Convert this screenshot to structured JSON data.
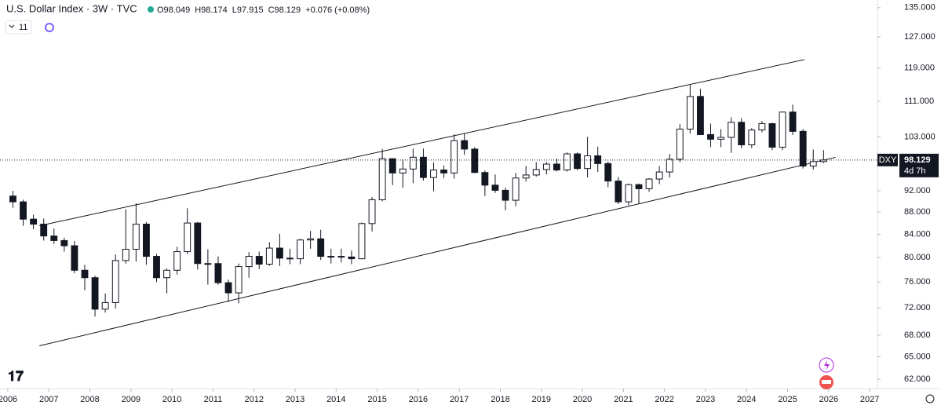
{
  "chart_data": {
    "type": "candlestick",
    "title": "U.S. Dollar Index · 3W · TVC",
    "ohlc_legend": [
      "O98.049",
      "H98.174",
      "L97.915",
      "C98.129",
      "+0.076 (+0.08%)"
    ],
    "indicator_count": 11,
    "symbol": "DXY",
    "last_price": 98.129,
    "countdown": "4d 7h",
    "log_scale": true,
    "up_color": "#ffffff",
    "down_color": "#131722",
    "outline_color": "#131722",
    "line_color": "#131722",
    "xlim": [
      2005.81,
      2027.15
    ],
    "xticks": [
      2006,
      2007,
      2008,
      2009,
      2010,
      2011,
      2012,
      2013,
      2014,
      2015,
      2016,
      2017,
      2018,
      2019,
      2020,
      2021,
      2022,
      2023,
      2024,
      2025,
      2026,
      2027
    ],
    "ylim": [
      60.8,
      137.2
    ],
    "yticks": [
      {
        "value": 62,
        "label": "62.000"
      },
      {
        "value": 65,
        "label": "65.000"
      },
      {
        "value": 68,
        "label": "68.000"
      },
      {
        "value": 72,
        "label": "72.000"
      },
      {
        "value": 76,
        "label": "76.000"
      },
      {
        "value": 80,
        "label": "80.000"
      },
      {
        "value": 84,
        "label": "84.000"
      },
      {
        "value": 88,
        "label": "88.000"
      },
      {
        "value": 92,
        "label": "92.000"
      },
      {
        "value": 103,
        "label": "103.000"
      },
      {
        "value": 111,
        "label": "111.000"
      },
      {
        "value": 119,
        "label": "119.000"
      },
      {
        "value": 127,
        "label": "127.000"
      },
      {
        "value": 135,
        "label": "135.000"
      }
    ],
    "x": [
      2006.125,
      2006.375,
      2006.625,
      2006.875,
      2007.125,
      2007.375,
      2007.625,
      2007.875,
      2008.125,
      2008.375,
      2008.625,
      2008.875,
      2009.125,
      2009.375,
      2009.625,
      2009.875,
      2010.125,
      2010.375,
      2010.625,
      2010.875,
      2011.125,
      2011.375,
      2011.625,
      2011.875,
      2012.125,
      2012.375,
      2012.625,
      2012.875,
      2013.125,
      2013.375,
      2013.625,
      2013.875,
      2014.125,
      2014.375,
      2014.625,
      2014.875,
      2015.125,
      2015.375,
      2015.625,
      2015.875,
      2016.125,
      2016.375,
      2016.625,
      2016.875,
      2017.125,
      2017.375,
      2017.625,
      2017.875,
      2018.125,
      2018.375,
      2018.625,
      2018.875,
      2019.125,
      2019.375,
      2019.625,
      2019.875,
      2020.125,
      2020.375,
      2020.625,
      2020.875,
      2021.125,
      2021.375,
      2021.625,
      2021.875,
      2022.125,
      2022.375,
      2022.625,
      2022.875,
      2023.125,
      2023.375,
      2023.625,
      2023.875,
      2024.125,
      2024.375,
      2024.625,
      2024.875,
      2025.125,
      2025.375,
      2025.625,
      2025.875
    ],
    "open": [
      91.0,
      89.9,
      86.7,
      85.8,
      83.7,
      82.9,
      82.0,
      77.9,
      76.7,
      71.8,
      72.8,
      79.5,
      81.4,
      85.8,
      80.2,
      76.7,
      77.9,
      81.0,
      86.0,
      79.0,
      79.0,
      75.9,
      74.3,
      78.5,
      80.2,
      78.9,
      81.6,
      79.9,
      79.8,
      83.0,
      83.2,
      80.2,
      80.2,
      80.1,
      79.8,
      85.9,
      90.3,
      98.4,
      95.5,
      96.3,
      98.7,
      94.6,
      96.1,
      95.5,
      102.2,
      100.4,
      95.6,
      93.1,
      92.1,
      90.2,
      94.5,
      95.1,
      96.2,
      97.3,
      96.1,
      99.4,
      96.4,
      99.0,
      97.4,
      93.9,
      89.9,
      93.2,
      92.4,
      94.3,
      95.7,
      98.3,
      104.7,
      112.1,
      103.5,
      102.5,
      102.9,
      106.2,
      101.3,
      104.5,
      105.9,
      100.8,
      108.5,
      104.2,
      96.9,
      97.8
    ],
    "high": [
      92.0,
      90.3,
      87.5,
      86.8,
      85.0,
      83.4,
      82.8,
      78.8,
      77.0,
      74.2,
      80.5,
      88.5,
      89.6,
      86.2,
      80.6,
      78.2,
      81.8,
      88.7,
      86.2,
      81.4,
      80.2,
      76.4,
      79.0,
      80.9,
      81.0,
      82.6,
      84.1,
      81.5,
      83.2,
      84.6,
      84.8,
      81.5,
      81.5,
      81.2,
      86.1,
      90.8,
      100.4,
      98.5,
      98.3,
      100.5,
      100.5,
      97.6,
      97.0,
      103.6,
      103.8,
      100.8,
      96.0,
      95.2,
      92.6,
      95.5,
      96.9,
      97.7,
      97.7,
      98.4,
      99.7,
      99.7,
      103.0,
      100.9,
      97.8,
      94.7,
      93.4,
      93.4,
      94.5,
      96.9,
      99.4,
      105.8,
      114.8,
      113.9,
      105.9,
      104.7,
      107.3,
      107.1,
      104.9,
      106.5,
      106.1,
      108.5,
      110.2,
      104.7,
      100.3,
      100.2
    ],
    "low": [
      88.8,
      85.5,
      84.9,
      82.9,
      82.3,
      81.0,
      77.4,
      74.7,
      70.7,
      71.3,
      71.9,
      79.0,
      79.3,
      78.8,
      76.0,
      74.2,
      77.2,
      80.6,
      78.0,
      75.6,
      75.6,
      72.9,
      72.7,
      76.7,
      78.1,
      78.6,
      78.6,
      78.9,
      78.9,
      81.5,
      79.6,
      79.0,
      79.2,
      78.9,
      79.7,
      84.5,
      90.0,
      93.1,
      92.6,
      93.5,
      94.0,
      91.9,
      94.5,
      94.4,
      99.2,
      95.5,
      91.0,
      91.6,
      88.3,
      89.1,
      93.8,
      94.8,
      95.2,
      95.8,
      95.8,
      96.1,
      94.6,
      95.7,
      92.7,
      89.5,
      89.2,
      89.5,
      91.8,
      93.3,
      94.6,
      97.7,
      103.7,
      103.4,
      100.8,
      100.8,
      99.6,
      100.6,
      100.6,
      104.0,
      100.2,
      100.2,
      103.4,
      96.4,
      96.2,
      97.5
    ],
    "close": [
      89.9,
      86.7,
      85.8,
      83.7,
      82.9,
      82.0,
      77.9,
      76.7,
      71.8,
      72.8,
      79.5,
      81.4,
      85.8,
      80.2,
      76.7,
      77.9,
      81.0,
      86.0,
      79.0,
      79.0,
      75.9,
      74.3,
      78.5,
      80.2,
      78.9,
      81.6,
      79.9,
      79.8,
      83.0,
      83.2,
      80.2,
      80.2,
      80.1,
      79.8,
      85.9,
      90.3,
      98.4,
      95.5,
      96.3,
      98.7,
      94.6,
      96.1,
      95.5,
      102.2,
      100.4,
      95.6,
      93.1,
      92.1,
      90.2,
      94.5,
      95.1,
      96.2,
      97.3,
      96.1,
      99.4,
      96.4,
      99.0,
      97.4,
      93.9,
      89.9,
      93.2,
      92.4,
      94.3,
      95.7,
      98.3,
      104.7,
      112.1,
      103.5,
      102.5,
      102.9,
      106.2,
      101.3,
      104.5,
      105.9,
      100.8,
      108.5,
      104.2,
      96.9,
      97.8,
      98.129
    ],
    "trendlines": [
      {
        "x": [
          2006.77,
          2025.41
        ],
        "y": [
          85.5,
          121.1
        ]
      },
      {
        "x": [
          2006.77,
          2026.17
        ],
        "y": [
          66.5,
          98.7
        ]
      }
    ]
  }
}
